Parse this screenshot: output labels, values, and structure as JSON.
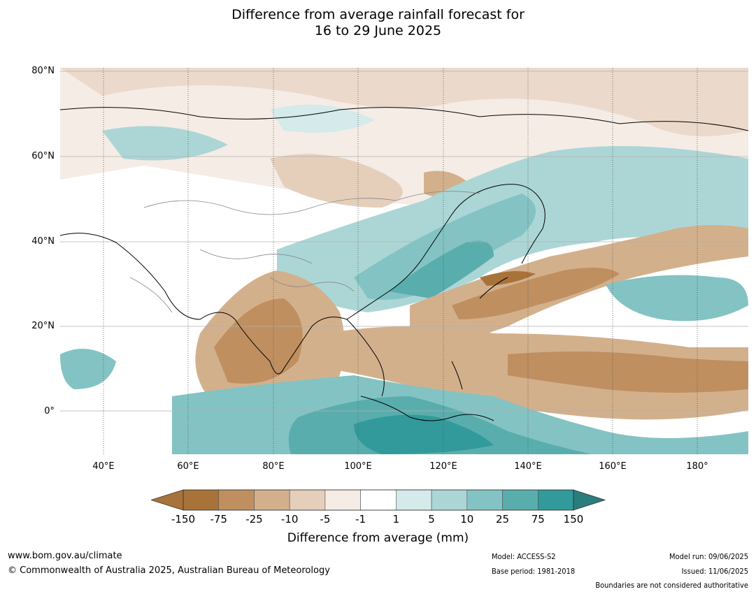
{
  "title": {
    "line1": "Difference from average rainfall forecast for",
    "line2": "16 to 29 June 2025"
  },
  "map": {
    "latitude_labels": [
      "80°N",
      "60°N",
      "40°N",
      "20°N",
      "0°"
    ],
    "longitude_labels": [
      "40°E",
      "60°E",
      "80°E",
      "100°E",
      "120°E",
      "140°E",
      "160°E",
      "180°"
    ],
    "extent": {
      "lon_min": 30,
      "lon_max": 192,
      "lat_min": -10,
      "lat_max": 80
    }
  },
  "colorbar": {
    "ticks": [
      "-150",
      "-75",
      "-25",
      "-10",
      "-5",
      "-1",
      "1",
      "5",
      "10",
      "25",
      "75",
      "150"
    ],
    "colors": [
      "#a87339",
      "#bf8f60",
      "#d3b08c",
      "#e5cfbb",
      "#f5ece6",
      "#ffffff",
      "#d5eaea",
      "#acd6d6",
      "#83c3c3",
      "#5aadad",
      "#329a9a",
      "#2a7d7d"
    ],
    "under_color": "#a87339",
    "over_color": "#2a7d7d",
    "label": "Difference from average (mm)"
  },
  "footer": {
    "website": "www.bom.gov.au/climate",
    "copyright": "© Commonwealth of Australia 2025, Australian Bureau of Meteorology",
    "model": "Model: ACCESS-S2",
    "base_period": "Base period: 1981-2018",
    "model_run": "Model run: 09/06/2025",
    "issued": "Issued: 11/06/2025",
    "disclaimer": "Boundaries are not considered authoritative"
  }
}
